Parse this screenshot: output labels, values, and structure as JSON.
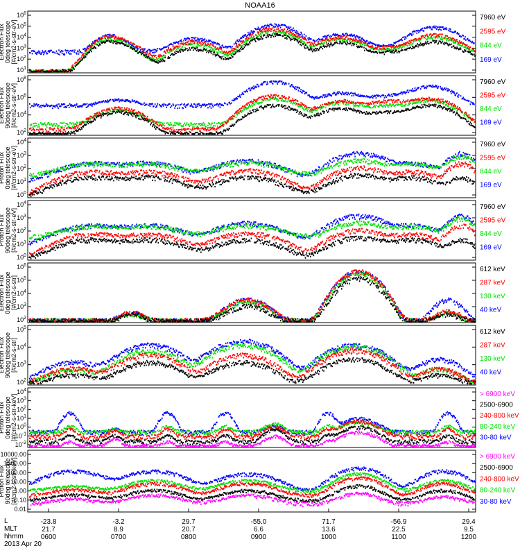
{
  "title": "NOAA16",
  "date_label": "2013 Apr 20",
  "colors": {
    "blue": "#0000ff",
    "red": "#ff0000",
    "green": "#00e000",
    "black": "#000000",
    "magenta": "#ff00ff"
  },
  "footer": {
    "row_labels": [
      "L",
      "MLT",
      "hhmm"
    ],
    "L": [
      "-23.8",
      "-3.2",
      "29.7",
      "-55.0",
      "71.7",
      "-56.9",
      "29.4"
    ],
    "MLT": [
      "21.7",
      "8.9",
      "20.7",
      "6.6",
      "13.6",
      "22.5",
      "9.5"
    ],
    "hhmm": [
      "0600",
      "0700",
      "0800",
      "0900",
      "1000",
      "1100",
      "1200"
    ]
  },
  "chart_data": [
    {
      "type": "scatter",
      "instrument": "TED",
      "title_lines": [
        "TED",
        "Electron Flux",
        "0deg telescope",
        "[#/cm2-s-str-eV]"
      ],
      "ylim": [
        1,
        1000000
      ],
      "yscale": "log",
      "tick_labels": [
        "10^1",
        "10^2",
        "10^3",
        "10^4",
        "10^5",
        "10^6"
      ],
      "legend": [
        {
          "label": "7960 eV",
          "color": "black"
        },
        {
          "label": "2595 eV",
          "color": "red"
        },
        {
          "label": "844 eV",
          "color": "green"
        },
        {
          "label": "169 eV",
          "color": "blue"
        }
      ],
      "baseline": {
        "blue": 100,
        "red": 1,
        "green": 1,
        "black": 1
      },
      "peaks": [
        {
          "t": 0.2,
          "w": 0.03,
          "amp": {
            "blue": 300,
            "red": 800,
            "green": 300,
            "black": 300
          }
        },
        {
          "t": 0.18,
          "w": 0.02,
          "amp": {
            "blue": 4000,
            "red": 3000,
            "green": 2000,
            "black": 1000
          }
        },
        {
          "t": 0.37,
          "w": 0.03,
          "amp": {
            "blue": 2000,
            "red": 1000,
            "green": 500,
            "black": 200
          }
        },
        {
          "t": 0.55,
          "w": 0.03,
          "amp": {
            "blue": 50000,
            "red": 20000,
            "green": 10000,
            "black": 5000
          }
        },
        {
          "t": 0.7,
          "w": 0.03,
          "amp": {
            "blue": 6000,
            "red": 3000,
            "green": 2000,
            "black": 800
          }
        },
        {
          "t": 0.82,
          "w": 0.04,
          "amp": {
            "blue": 300,
            "red": 300,
            "green": 200,
            "black": 100
          }
        },
        {
          "t": 0.91,
          "w": 0.03,
          "amp": {
            "blue": 30000,
            "red": 5000,
            "green": 3000,
            "black": 1000
          }
        },
        {
          "t": 0.98,
          "w": 0.02,
          "amp": {
            "blue": 200,
            "red": 100,
            "green": 100,
            "black": 50
          }
        }
      ]
    },
    {
      "type": "scatter",
      "instrument": "TED",
      "title_lines": [
        "TED",
        "Electron Flux",
        "90deg telescope",
        "[#/cm2-s-str-eV]"
      ],
      "ylim": [
        1,
        1000000
      ],
      "yscale": "log",
      "tick_labels": [
        "10^2",
        "10^4",
        "10^6",
        "10^8"
      ],
      "legend": [
        {
          "label": "7960 eV",
          "color": "black"
        },
        {
          "label": "2595 eV",
          "color": "red"
        },
        {
          "label": "844 eV",
          "color": "green"
        },
        {
          "label": "169 eV",
          "color": "blue"
        }
      ],
      "baseline": {
        "blue": 1000,
        "red": 3,
        "green": 10,
        "black": 1
      },
      "peaks": [
        {
          "t": 0.2,
          "w": 0.03,
          "amp": {
            "blue": 3000,
            "red": 500,
            "green": 300,
            "black": 200
          }
        },
        {
          "t": 0.55,
          "w": 0.03,
          "amp": {
            "blue": 300000,
            "red": 10000,
            "green": 5000,
            "black": 1000
          }
        },
        {
          "t": 0.7,
          "w": 0.03,
          "amp": {
            "blue": 20000,
            "red": 3000,
            "green": 2000,
            "black": 500
          }
        },
        {
          "t": 0.81,
          "w": 0.04,
          "amp": {
            "blue": 10000,
            "red": 3000,
            "green": 1000,
            "black": 200
          }
        },
        {
          "t": 0.9,
          "w": 0.03,
          "amp": {
            "blue": 100000,
            "red": 5000,
            "green": 3000,
            "black": 1000
          }
        }
      ]
    },
    {
      "type": "scatter",
      "instrument": "TED",
      "title_lines": [
        "TED",
        "Proton Flux",
        "0deg telescope",
        "[#/cm2-s-str-eV]"
      ],
      "ylim": [
        1,
        10000
      ],
      "yscale": "log",
      "tick_labels": [
        "10^0",
        "10^1",
        "10^2",
        "10^3",
        "10^4"
      ],
      "legend": [
        {
          "label": "7960 eV",
          "color": "black"
        },
        {
          "label": "2595 eV",
          "color": "red"
        },
        {
          "label": "844 eV",
          "color": "green"
        },
        {
          "label": "169 eV",
          "color": "blue"
        }
      ],
      "baseline": {
        "blue": 10,
        "red": 1,
        "green": 30,
        "black": 1
      },
      "peaks": [
        {
          "t": 0.14,
          "w": 0.05,
          "amp": {
            "blue": 200,
            "red": 50,
            "green": 150,
            "black": 20
          }
        },
        {
          "t": 0.27,
          "w": 0.05,
          "amp": {
            "blue": 200,
            "red": 50,
            "green": 150,
            "black": 20
          }
        },
        {
          "t": 0.49,
          "w": 0.05,
          "amp": {
            "blue": 300,
            "red": 60,
            "green": 200,
            "black": 20
          }
        },
        {
          "t": 0.74,
          "w": 0.04,
          "amp": {
            "blue": 1000,
            "red": 100,
            "green": 300,
            "black": 30
          }
        },
        {
          "t": 0.86,
          "w": 0.04,
          "amp": {
            "blue": 200,
            "red": 50,
            "green": 150,
            "black": 20
          }
        },
        {
          "t": 0.97,
          "w": 0.02,
          "amp": {
            "blue": 1000,
            "red": 200,
            "green": 600,
            "black": 20
          }
        }
      ]
    },
    {
      "type": "scatter",
      "instrument": "TED",
      "title_lines": [
        "TED",
        "Proton Flux",
        "90deg telescope",
        "[#/cm2-s-str-eV]"
      ],
      "ylim": [
        1,
        10000
      ],
      "yscale": "log",
      "tick_labels": [
        "10^0",
        "10^1",
        "10^2",
        "10^3",
        "10^4"
      ],
      "legend": [
        {
          "label": "7960 eV",
          "color": "black"
        },
        {
          "label": "2595 eV",
          "color": "red"
        },
        {
          "label": "844 eV",
          "color": "green"
        },
        {
          "label": "169 eV",
          "color": "blue"
        }
      ],
      "baseline": {
        "blue": 10,
        "red": 1,
        "green": 30,
        "black": 1
      },
      "peaks": [
        {
          "t": 0.14,
          "w": 0.05,
          "amp": {
            "blue": 200,
            "red": 50,
            "green": 150,
            "black": 20
          }
        },
        {
          "t": 0.27,
          "w": 0.05,
          "amp": {
            "blue": 200,
            "red": 50,
            "green": 150,
            "black": 20
          }
        },
        {
          "t": 0.49,
          "w": 0.05,
          "amp": {
            "blue": 300,
            "red": 60,
            "green": 200,
            "black": 20
          }
        },
        {
          "t": 0.74,
          "w": 0.04,
          "amp": {
            "blue": 1000,
            "red": 100,
            "green": 300,
            "black": 30
          }
        },
        {
          "t": 0.86,
          "w": 0.04,
          "amp": {
            "blue": 200,
            "red": 50,
            "green": 150,
            "black": 20
          }
        },
        {
          "t": 0.97,
          "w": 0.02,
          "amp": {
            "blue": 1000,
            "red": 200,
            "green": 600,
            "black": 20
          }
        }
      ]
    },
    {
      "type": "scatter",
      "instrument": "MEPED",
      "title_lines": [
        "MEPED",
        "Electron Flux",
        "0deg telescope",
        "[#/cm2-s-str]"
      ],
      "ylim": [
        100,
        1000000
      ],
      "yscale": "log",
      "tick_labels": [
        "10^2",
        "10^3",
        "10^4",
        "10^5",
        "10^6"
      ],
      "legend": [
        {
          "label": "612 keV",
          "color": "black"
        },
        {
          "label": "287 keV",
          "color": "red"
        },
        {
          "label": "130 keV",
          "color": "green"
        },
        {
          "label": "40 keV",
          "color": "blue"
        }
      ],
      "baseline": {
        "blue": 100,
        "red": 100,
        "green": 100,
        "black": 100
      },
      "peaks": [
        {
          "t": 0.23,
          "w": 0.02,
          "amp": {
            "blue": 300,
            "red": 300,
            "green": 200,
            "black": 200
          }
        },
        {
          "t": 0.49,
          "w": 0.03,
          "amp": {
            "blue": 3000,
            "red": 3000,
            "green": 2000,
            "black": 1000
          }
        },
        {
          "t": 0.74,
          "w": 0.025,
          "amp": {
            "blue": 300000,
            "red": 300000,
            "green": 200000,
            "black": 100000
          }
        },
        {
          "t": 0.94,
          "w": 0.02,
          "amp": {
            "blue": 3000,
            "red": 400,
            "green": 300,
            "black": 200
          }
        }
      ]
    },
    {
      "type": "scatter",
      "instrument": "MEPED",
      "title_lines": [
        "MEPED",
        "Electron Flux",
        "90deg telescope",
        "[#/cm2-s-str]"
      ],
      "ylim": [
        100,
        1000000
      ],
      "yscale": "log",
      "tick_labels": [
        "10^2",
        "10^3",
        "10^4",
        "10^5"
      ],
      "legend": [
        {
          "label": "612 keV",
          "color": "black"
        },
        {
          "label": "287 keV",
          "color": "red"
        },
        {
          "label": "130 keV",
          "color": "green"
        },
        {
          "label": "40 keV",
          "color": "blue"
        }
      ],
      "baseline": {
        "blue": 200,
        "red": 100,
        "green": 100,
        "black": 100
      },
      "peaks": [
        {
          "t": 0.1,
          "w": 0.04,
          "amp": {
            "blue": 3000,
            "red": 1000,
            "green": 800,
            "black": 300
          }
        },
        {
          "t": 0.27,
          "w": 0.04,
          "amp": {
            "blue": 50000,
            "red": 10000,
            "green": 20000,
            "black": 3000
          }
        },
        {
          "t": 0.48,
          "w": 0.04,
          "amp": {
            "blue": 100000,
            "red": 10000,
            "green": 50000,
            "black": 3000
          }
        },
        {
          "t": 0.73,
          "w": 0.04,
          "amp": {
            "blue": 50000,
            "red": 20000,
            "green": 40000,
            "black": 5000
          }
        },
        {
          "t": 0.92,
          "w": 0.03,
          "amp": {
            "blue": 5000,
            "red": 1000,
            "green": 1000,
            "black": 300
          }
        }
      ]
    },
    {
      "type": "scatter",
      "instrument": "MEPED",
      "title_lines": [
        "MEPED",
        "Proton Flux",
        "0deg telescope",
        "[#/cm2-s-str-keV]"
      ],
      "ylim": [
        0.01,
        10000
      ],
      "yscale": "log",
      "tick_labels": [
        "10^-2",
        "10^-1",
        "10^0",
        "10^1",
        "10^2",
        "10^3",
        "10^4"
      ],
      "legend": [
        {
          "label": "> 6900 keV",
          "color": "magenta"
        },
        {
          "label": "2500-6900",
          "color": "black"
        },
        {
          "label": "240-800 keV",
          "color": "red"
        },
        {
          "label": "80-240 keV",
          "color": "green"
        },
        {
          "label": "30-80 keV",
          "color": "blue"
        }
      ],
      "baseline": {
        "blue": 0.3,
        "red": 0.1,
        "green": 0.3,
        "black": 0.03,
        "magenta": 0.01
      },
      "peaks": [
        {
          "t": 0.09,
          "w": 0.01,
          "amp": {
            "blue": 30,
            "red": 0.5,
            "green": 1,
            "black": 0.1,
            "magenta": 0.02
          }
        },
        {
          "t": 0.19,
          "w": 0.01,
          "amp": {
            "blue": 0.3,
            "red": 0.3,
            "green": 0.3,
            "black": 0.1,
            "magenta": 0.05
          }
        },
        {
          "t": 0.31,
          "w": 0.01,
          "amp": {
            "blue": 30,
            "red": 0.5,
            "green": 1,
            "black": 0.1,
            "magenta": 0.02
          }
        },
        {
          "t": 0.44,
          "w": 0.01,
          "amp": {
            "blue": 30,
            "red": 0.5,
            "green": 1,
            "black": 0.1,
            "magenta": 0.02
          }
        },
        {
          "t": 0.55,
          "w": 0.015,
          "amp": {
            "blue": 1,
            "red": 1,
            "green": 2,
            "black": 0.5,
            "magenta": 0.1
          }
        },
        {
          "t": 0.67,
          "w": 0.01,
          "amp": {
            "blue": 30,
            "red": 0.5,
            "green": 1,
            "black": 0.1,
            "magenta": 0.02
          }
        },
        {
          "t": 0.74,
          "w": 0.025,
          "amp": {
            "blue": 8,
            "red": 4,
            "green": 3,
            "black": 1,
            "magenta": 0.3
          }
        },
        {
          "t": 0.94,
          "w": 0.01,
          "amp": {
            "blue": 30,
            "red": 0.5,
            "green": 1,
            "black": 0.1,
            "magenta": 0.02
          }
        }
      ]
    },
    {
      "type": "scatter",
      "instrument": "MEPED",
      "title_lines": [
        "MEPED",
        "Proton Flux",
        "90deg telescope",
        "[#/cm2-s-str-keV]"
      ],
      "ylim": [
        0.01,
        10000
      ],
      "yscale": "log",
      "tick_labels": [
        "0.01",
        "0.10",
        "1.00",
        "10.00",
        "100.00",
        "1000.00",
        "10000.00"
      ],
      "legend": [
        {
          "label": "> 6900 keV",
          "color": "magenta"
        },
        {
          "label": "2500-6900",
          "color": "black"
        },
        {
          "label": "240-800 keV",
          "color": "red"
        },
        {
          "label": "80-240 keV",
          "color": "green"
        },
        {
          "label": "30-80 keV",
          "color": "blue"
        }
      ],
      "baseline": {
        "blue": 1,
        "red": 0.3,
        "green": 1,
        "black": 0.1,
        "magenta": 0.05
      },
      "peaks": [
        {
          "t": 0.1,
          "w": 0.04,
          "amp": {
            "blue": 100,
            "red": 1,
            "green": 2,
            "black": 0.3,
            "magenta": 0.1
          }
        },
        {
          "t": 0.28,
          "w": 0.04,
          "amp": {
            "blue": 100,
            "red": 5,
            "green": 10,
            "black": 1,
            "magenta": 0.3
          }
        },
        {
          "t": 0.49,
          "w": 0.04,
          "amp": {
            "blue": 50,
            "red": 5,
            "green": 10,
            "black": 1,
            "magenta": 0.3
          }
        },
        {
          "t": 0.74,
          "w": 0.03,
          "amp": {
            "blue": 200,
            "red": 20,
            "green": 50,
            "black": 3,
            "magenta": 0.5
          }
        },
        {
          "t": 0.93,
          "w": 0.03,
          "amp": {
            "blue": 100,
            "red": 5,
            "green": 10,
            "black": 1,
            "magenta": 0.2
          }
        }
      ]
    }
  ]
}
